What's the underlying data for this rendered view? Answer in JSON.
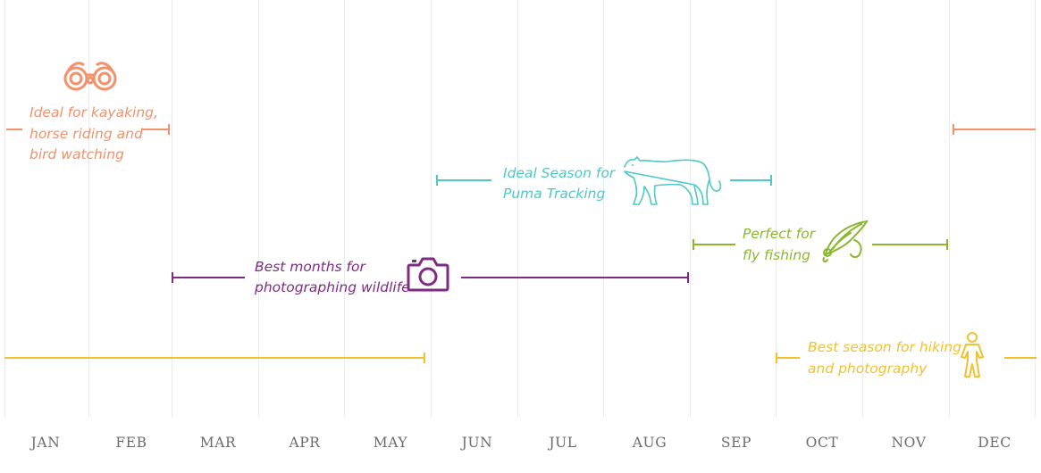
{
  "months": [
    "JAN",
    "FEB",
    "MAR",
    "APR",
    "MAY",
    "JUN",
    "JUL",
    "AUG",
    "SEP",
    "OCT",
    "NOV",
    "DEC"
  ],
  "activities": {
    "kayaking": {
      "line1": "Ideal for kayaking,",
      "line2": "horse riding and",
      "line3": "bird watching",
      "icon": "binoculars-icon",
      "color": "#f3916b"
    },
    "puma": {
      "line1": "Ideal Season for",
      "line2": "Puma Tracking",
      "icon": "puma-icon",
      "color": "#4fc7c6"
    },
    "fishing": {
      "line1": "Perfect for",
      "line2": "fly fishing",
      "icon": "fishing-fly-icon",
      "color": "#8ab82c"
    },
    "photo": {
      "line1": "Best months for",
      "line2": "photographing wildlife",
      "icon": "camera-icon",
      "color": "#7e2b84"
    },
    "hiking": {
      "line1": "Best season for hiking",
      "line2": "and photography",
      "icon": "hiker-icon",
      "color": "#f2c12e"
    }
  }
}
